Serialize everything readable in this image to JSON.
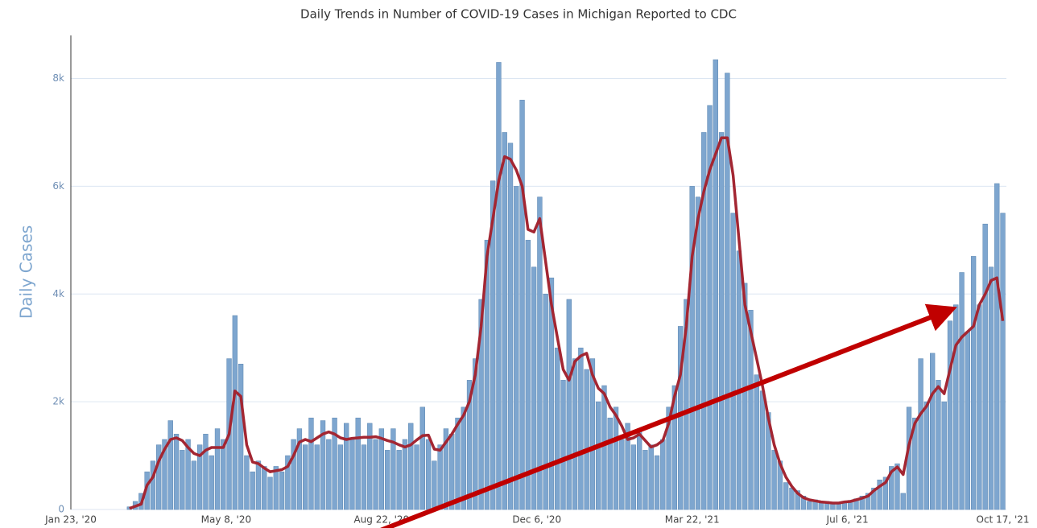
{
  "chart_data": {
    "type": "bar",
    "title": "Daily Trends in Number of COVID-19 Cases in Michigan Reported to CDC",
    "y_label": "Daily Cases",
    "xlim": [
      0,
      638
    ],
    "xticks": [
      {
        "value": 0,
        "label": "Jan 23, '20"
      },
      {
        "value": 106,
        "label": "May 8, '20"
      },
      {
        "value": 212,
        "label": "Aug 22, '20"
      },
      {
        "value": 318,
        "label": "Dec 6, '20"
      },
      {
        "value": 424,
        "label": "Mar 22, '21"
      },
      {
        "value": 530,
        "label": "Jul 6, '21"
      },
      {
        "value": 636,
        "label": "Oct 17, '21"
      }
    ],
    "ylim": [
      0,
      8800
    ],
    "yticks": [
      0,
      {
        "value": 2000,
        "label": "2k"
      },
      {
        "value": 4000,
        "label": "4k"
      },
      {
        "value": 6000,
        "label": "6k"
      },
      {
        "value": 8000,
        "label": "8k"
      }
    ],
    "grid": true,
    "x": [
      40,
      44,
      48,
      52,
      56,
      60,
      64,
      68,
      72,
      76,
      80,
      84,
      88,
      92,
      96,
      100,
      104,
      108,
      112,
      116,
      120,
      124,
      128,
      132,
      136,
      140,
      144,
      148,
      152,
      156,
      160,
      164,
      168,
      172,
      176,
      180,
      184,
      188,
      192,
      196,
      200,
      204,
      208,
      212,
      216,
      220,
      224,
      228,
      232,
      236,
      240,
      244,
      248,
      252,
      256,
      260,
      264,
      268,
      272,
      276,
      280,
      284,
      288,
      292,
      296,
      300,
      304,
      308,
      312,
      316,
      320,
      324,
      328,
      332,
      336,
      340,
      344,
      348,
      352,
      356,
      360,
      364,
      368,
      372,
      376,
      380,
      384,
      388,
      392,
      396,
      400,
      404,
      408,
      412,
      416,
      420,
      424,
      428,
      432,
      436,
      440,
      444,
      448,
      452,
      456,
      460,
      464,
      468,
      472,
      476,
      480,
      484,
      488,
      492,
      496,
      500,
      504,
      508,
      512,
      516,
      520,
      524,
      528,
      532,
      536,
      540,
      544,
      548,
      552,
      556,
      560,
      564,
      568,
      572,
      576,
      580,
      584,
      588,
      592,
      596,
      600,
      604,
      608,
      612,
      616,
      620,
      624,
      628,
      632,
      636
    ],
    "series": [
      {
        "type": "bar",
        "color": "#7ea6cf",
        "values": [
          50,
          150,
          300,
          700,
          900,
          1200,
          1300,
          1650,
          1400,
          1100,
          1300,
          900,
          1200,
          1400,
          1000,
          1500,
          1300,
          2800,
          3600,
          2700,
          1000,
          700,
          900,
          800,
          600,
          800,
          700,
          1000,
          1300,
          1500,
          1200,
          1700,
          1200,
          1650,
          1300,
          1700,
          1200,
          1600,
          1300,
          1700,
          1200,
          1600,
          1300,
          1500,
          1100,
          1500,
          1100,
          1300,
          1600,
          1200,
          1900,
          1300,
          900,
          1200,
          1500,
          1400,
          1700,
          1900,
          2400,
          2800,
          3900,
          5000,
          6100,
          8300,
          7000,
          6800,
          6000,
          7600,
          5000,
          4500,
          5800,
          4000,
          4300,
          3000,
          2400,
          3900,
          2800,
          3000,
          2600,
          2800,
          2000,
          2300,
          1700,
          1900,
          1300,
          1600,
          1200,
          1500,
          1100,
          1200,
          1000,
          1300,
          1900,
          2300,
          3400,
          3900,
          6000,
          5800,
          7000,
          7500,
          8350,
          7000,
          8100,
          5500,
          4800,
          4200,
          3700,
          2500,
          2200,
          1800,
          1100,
          900,
          500,
          400,
          350,
          250,
          150,
          180,
          120,
          150,
          100,
          130,
          150,
          170,
          200,
          250,
          300,
          400,
          550,
          600,
          800,
          850,
          300,
          1900,
          1700,
          2800,
          2000,
          2900,
          2400,
          2000,
          3500,
          3800,
          4400,
          3300,
          4700,
          3800,
          5300,
          4500,
          6050,
          5500
        ]
      },
      {
        "type": "line",
        "color": "#a32632",
        "values": [
          20,
          60,
          100,
          450,
          600,
          900,
          1120,
          1300,
          1330,
          1280,
          1150,
          1040,
          1000,
          1100,
          1150,
          1150,
          1150,
          1400,
          2200,
          2100,
          1200,
          880,
          850,
          770,
          700,
          720,
          740,
          800,
          1000,
          1250,
          1300,
          1260,
          1330,
          1400,
          1440,
          1400,
          1330,
          1300,
          1320,
          1330,
          1340,
          1340,
          1350,
          1320,
          1280,
          1250,
          1200,
          1160,
          1200,
          1290,
          1370,
          1380,
          1120,
          1100,
          1250,
          1400,
          1580,
          1750,
          2000,
          2500,
          3400,
          4700,
          5400,
          6100,
          6550,
          6500,
          6300,
          6000,
          5200,
          5150,
          5400,
          4600,
          3800,
          3200,
          2600,
          2400,
          2750,
          2850,
          2900,
          2500,
          2250,
          2150,
          1900,
          1750,
          1550,
          1300,
          1330,
          1400,
          1280,
          1160,
          1200,
          1280,
          1600,
          2100,
          2500,
          3400,
          4700,
          5400,
          5900,
          6300,
          6600,
          6900,
          6900,
          6200,
          5000,
          3800,
          3300,
          2800,
          2300,
          1700,
          1200,
          850,
          600,
          430,
          300,
          220,
          180,
          160,
          140,
          130,
          120,
          120,
          140,
          150,
          180,
          210,
          250,
          350,
          430,
          500,
          700,
          790,
          650,
          1200,
          1600,
          1780,
          1920,
          2150,
          2280,
          2150,
          2600,
          3050,
          3200,
          3300,
          3400,
          3800,
          4000,
          4250,
          4300,
          3500
        ]
      }
    ]
  }
}
